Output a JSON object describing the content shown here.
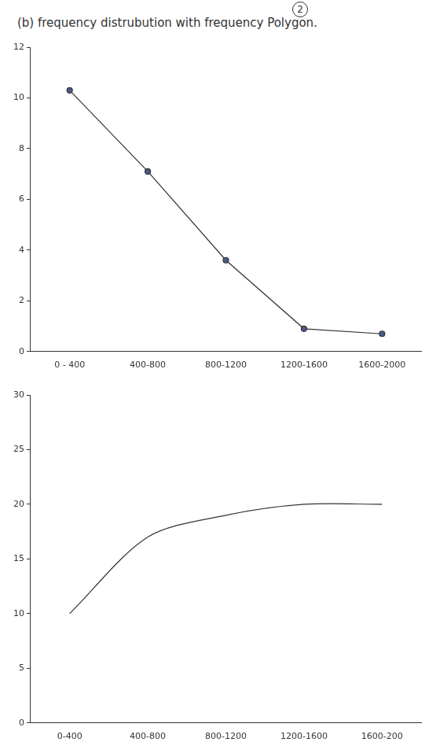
{
  "heading": "(b) frequency distrubution with frequency Polygon.",
  "page_number": "2",
  "chart_data": [
    {
      "type": "line",
      "categories": [
        "0 - 400",
        "400-800",
        "800-1200",
        "1200-1600",
        "1600-2000"
      ],
      "values": [
        10.3,
        7.1,
        3.6,
        0.9,
        0.7
      ],
      "color": "#333333",
      "marker": "circle",
      "line_style": "solid",
      "ylim": [
        0,
        12
      ],
      "yticks": [
        0,
        2,
        4,
        6,
        8,
        10,
        12
      ],
      "grid": false
    },
    {
      "type": "line",
      "categories": [
        "0-400",
        "400-800",
        "800-1200",
        "1200-1600",
        "1600-200"
      ],
      "values": [
        10,
        17,
        19,
        20,
        20
      ],
      "color": "#333333",
      "marker": "none",
      "line_style": "solid",
      "ylim": [
        0,
        30
      ],
      "yticks": [
        0,
        5,
        10,
        15,
        20,
        25,
        30
      ],
      "grid": false
    }
  ]
}
